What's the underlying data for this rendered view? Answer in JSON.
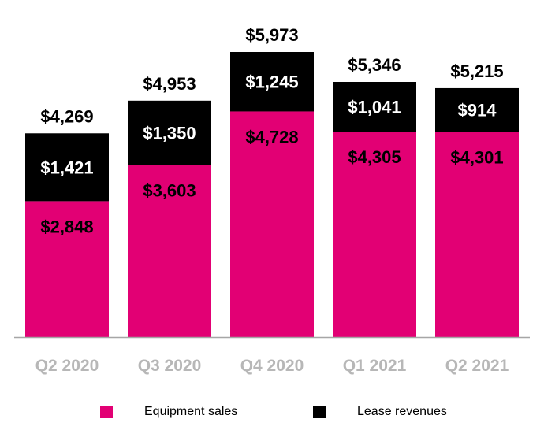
{
  "chart_data": {
    "type": "bar",
    "stacked": true,
    "categories": [
      "Q2 2020",
      "Q3 2020",
      "Q4 2020",
      "Q1 2021",
      "Q2 2021"
    ],
    "series": [
      {
        "name": "Equipment sales",
        "color": "#e20074",
        "text_color": "#000000",
        "values": [
          2848,
          3603,
          4728,
          4305,
          4301
        ],
        "labels": [
          "$2,848",
          "$3,603",
          "$4,728",
          "$4,305",
          "$4,301"
        ]
      },
      {
        "name": "Lease revenues",
        "color": "#000000",
        "text_color": "#ffffff",
        "values": [
          1421,
          1350,
          1245,
          1041,
          914
        ],
        "labels": [
          "$1,421",
          "$1,350",
          "$1,245",
          "$1,041",
          "$914"
        ]
      }
    ],
    "totals": [
      4269,
      4953,
      5973,
      5346,
      5215
    ],
    "total_labels": [
      "$4,269",
      "$4,953",
      "$5,973",
      "$5,346",
      "$5,215"
    ],
    "title": "",
    "xlabel": "",
    "ylabel": "",
    "ylim": [
      0,
      6500
    ],
    "grid": false,
    "legend_position": "bottom"
  },
  "colors": {
    "baseline": "#a6a6a6",
    "category_text": "#b7b7b7"
  }
}
